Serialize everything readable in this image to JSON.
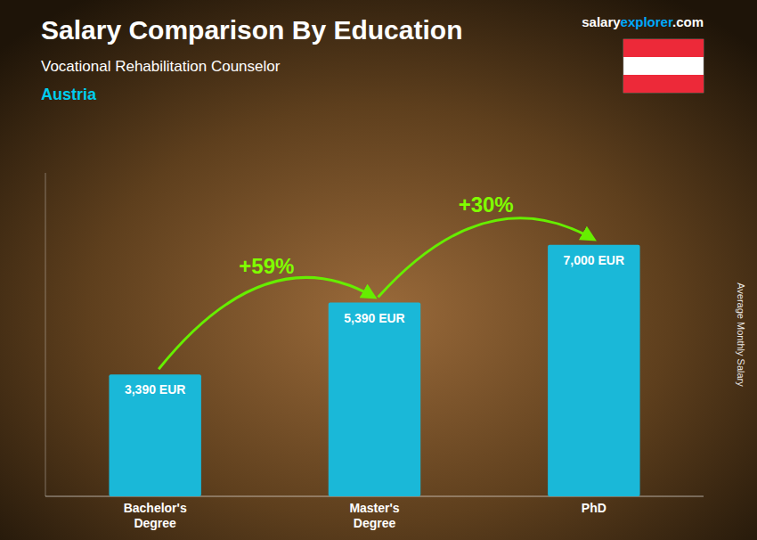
{
  "chart_data": {
    "type": "bar",
    "title": "Salary Comparison By Education",
    "subtitle": "Vocational Rehabilitation Counselor",
    "ylabel": "Average Monthly Salary",
    "annotations": [
      "Austria",
      "+59%",
      "+30%",
      "salary",
      "explorer",
      ".com"
    ],
    "categories": [
      "Bachelor's\nDegree",
      "Master's\nDegree",
      "PhD"
    ],
    "values": [
      3390,
      5390,
      7000
    ],
    "value_labels": [
      "3,390 EUR",
      "5,390 EUR",
      "7,000 EUR"
    ],
    "data_labels": true,
    "color": "#1ab8d8",
    "ylim": [
      0,
      9000
    ],
    "tick_labels": "x",
    "grid": false
  }
}
